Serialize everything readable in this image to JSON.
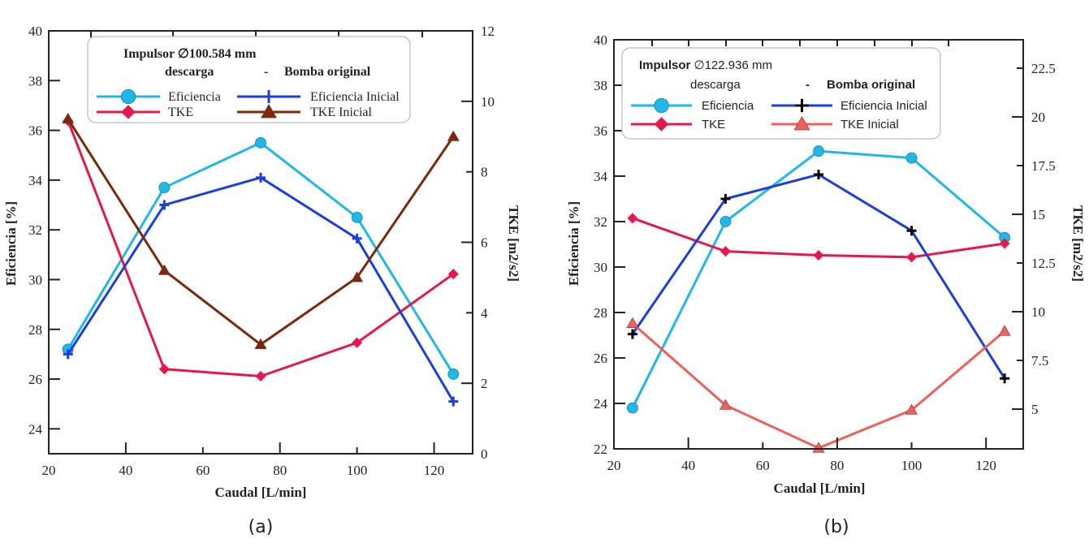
{
  "chart_data": [
    {
      "type": "line",
      "panel_label": "(a)",
      "xlabel": "Caudal [L/min]",
      "ylabel": "Eficiencia [%]",
      "y2label": "TKE [m2/s2]",
      "xlim": [
        20,
        130
      ],
      "ylim": [
        23,
        40
      ],
      "y2lim": [
        0,
        12
      ],
      "xticks": [
        20,
        40,
        60,
        80,
        100,
        120
      ],
      "yticks": [
        24,
        26,
        28,
        30,
        32,
        34,
        36,
        38,
        40
      ],
      "y2ticks": [
        0,
        2,
        4,
        6,
        8,
        10,
        12
      ],
      "grid": false,
      "legend": {
        "placement": "top-left",
        "title": "Impulsor",
        "diameter": "∅100.584 mm",
        "col1_header": "descarga",
        "separator": "-",
        "col2_header": "Bomba original"
      },
      "x": [
        25,
        50,
        75,
        100,
        125
      ],
      "series": [
        {
          "name": "Eficiencia",
          "axis": "left",
          "marker": "circle",
          "color": "#1fb8e8",
          "values": [
            27.2,
            33.7,
            35.5,
            32.5,
            26.2
          ]
        },
        {
          "name": "TKE",
          "axis": "right",
          "marker": "diamond",
          "color": "#e8174a",
          "values": [
            9.45,
            2.4,
            2.2,
            3.15,
            5.1
          ]
        },
        {
          "name": "Eficiencia Inicial",
          "axis": "left",
          "marker": "plus",
          "color": "#1a3fdc",
          "marker_color": "#1a3fdc",
          "values": [
            27.0,
            33.0,
            34.1,
            31.65,
            25.1
          ]
        },
        {
          "name": "TKE Inicial",
          "axis": "right",
          "marker": "triangle",
          "color": "#7a2a0a",
          "values": [
            9.5,
            5.2,
            3.1,
            5.0,
            9.0
          ]
        }
      ]
    },
    {
      "type": "line",
      "panel_label": "(b)",
      "xlabel": "Caudal [L/min]",
      "ylabel": "Eficiencia [%]",
      "y2label": "TKE [m2/s2]",
      "xlim": [
        20,
        130
      ],
      "ylim": [
        22,
        40
      ],
      "y2lim": [
        2.96,
        23.96
      ],
      "xticks": [
        20,
        40,
        60,
        80,
        100,
        120
      ],
      "yticks": [
        22,
        24,
        26,
        28,
        30,
        32,
        34,
        36,
        38,
        40
      ],
      "y2ticks": [
        5,
        7.5,
        10,
        12.5,
        15,
        17.5,
        20,
        22.5
      ],
      "grid": false,
      "legend": {
        "placement": "top-left",
        "title": "Impulsor",
        "diameter": "∅122.936 mm",
        "col1_header": "descarga",
        "separator": "-",
        "col2_header": "Bomba original"
      },
      "x": [
        25,
        50,
        75,
        100,
        125
      ],
      "series": [
        {
          "name": "Eficiencia",
          "axis": "left",
          "marker": "circle",
          "color": "#1fb8e8",
          "values": [
            23.8,
            32.0,
            35.1,
            34.8,
            31.3
          ]
        },
        {
          "name": "TKE",
          "axis": "right",
          "marker": "diamond",
          "color": "#e8174a",
          "values": [
            14.8,
            13.1,
            12.9,
            12.8,
            13.5
          ]
        },
        {
          "name": "Eficiencia Inicial",
          "axis": "left",
          "marker": "plus",
          "color": "#1a3fdc",
          "marker_color": "#000000",
          "values": [
            27.05,
            33.0,
            34.07,
            31.6,
            25.1
          ]
        },
        {
          "name": "TKE Inicial",
          "axis": "right",
          "marker": "triangle",
          "color": "#f0605a",
          "values": [
            9.4,
            5.2,
            3.0,
            4.95,
            9.0
          ]
        }
      ]
    }
  ]
}
